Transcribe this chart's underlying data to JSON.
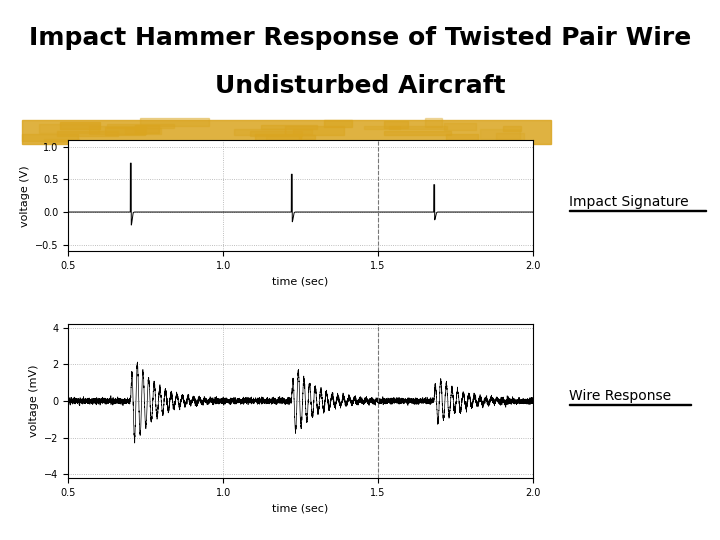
{
  "title_line1": "Impact Hammer Response of Twisted Pair Wire",
  "title_line2": "Undisturbed Aircraft",
  "title_fontsize": 18,
  "title_fontweight": "bold",
  "bg_color": "#ffffff",
  "plot1_ylabel": "voltage (V)",
  "plot2_ylabel": "voltage (mV)",
  "xlabel": "time (sec)",
  "plot1_ylim": [
    -0.6,
    1.1
  ],
  "plot1_xlim": [
    0.5,
    2.0
  ],
  "plot2_ylim": [
    -4.2,
    4.2
  ],
  "plot2_xlim": [
    0.5,
    2.0
  ],
  "plot1_yticks": [
    -0.5,
    0,
    0.5,
    1
  ],
  "plot1_xticks": [
    0.5,
    1.0,
    1.5,
    2.0
  ],
  "plot2_yticks": [
    -4,
    -2,
    0,
    2,
    4
  ],
  "plot2_xticks": [
    0.5,
    1.0,
    1.5,
    2.0
  ],
  "line_color": "#000000",
  "grid_color": "#aaaaaa",
  "label1": "Impact Signature",
  "label2": "Wire Response",
  "highlight_color": "#DAA520",
  "impact_times": [
    0.7,
    1.22,
    1.68
  ],
  "impact_amplitudes": [
    0.75,
    0.58,
    0.42
  ],
  "impact_neg_amplitudes": [
    -0.2,
    -0.15,
    -0.12
  ],
  "seed": 42,
  "noise_amplitude": 0.08,
  "wire_response_seed": 123
}
